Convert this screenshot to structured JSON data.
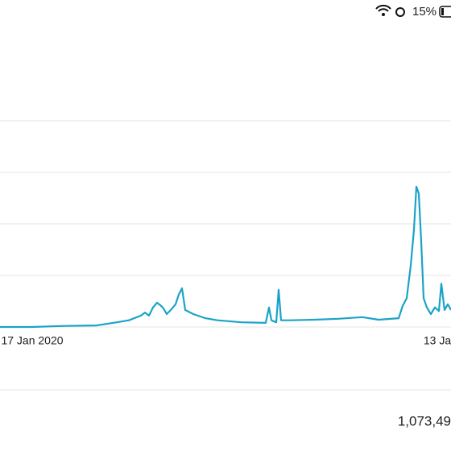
{
  "status_bar": {
    "battery": "15%"
  },
  "chart_data": {
    "type": "line",
    "x": [
      0,
      40,
      80,
      120,
      145,
      160,
      175,
      180,
      185,
      190,
      195,
      200,
      203,
      207,
      212,
      218,
      222,
      226,
      230,
      240,
      255,
      270,
      300,
      330,
      334,
      337,
      343,
      346,
      349,
      360,
      390,
      420,
      450,
      470,
      495,
      500,
      505,
      510,
      514,
      517,
      520,
      523,
      526,
      530,
      535,
      540,
      545,
      548,
      552,
      556,
      560
    ],
    "series": [
      {
        "color": "#1aa3c8",
        "values": [
          0,
          0,
          0.02,
          0.03,
          0.09,
          0.13,
          0.22,
          0.28,
          0.22,
          0.38,
          0.47,
          0.41,
          0.36,
          0.25,
          0.33,
          0.44,
          0.63,
          0.75,
          0.33,
          0.25,
          0.17,
          0.13,
          0.09,
          0.08,
          0.38,
          0.13,
          0.09,
          0.72,
          0.13,
          0.13,
          0.14,
          0.16,
          0.19,
          0.14,
          0.17,
          0.41,
          0.56,
          1.19,
          1.89,
          2.72,
          2.59,
          1.66,
          0.56,
          0.38,
          0.25,
          0.38,
          0.31,
          0.84,
          0.33,
          0.44,
          0.33
        ]
      }
    ],
    "xlim": [
      0,
      560
    ],
    "xticks": [
      {
        "value": 40,
        "label": "17 Jan 2020"
      },
      {
        "value": 543,
        "label": "13 Ja"
      }
    ],
    "ylim": [
      0,
      4
    ],
    "yticks": [
      0,
      1,
      2,
      3,
      4
    ],
    "grid": true
  },
  "footer": {
    "value": "1,073,49"
  }
}
